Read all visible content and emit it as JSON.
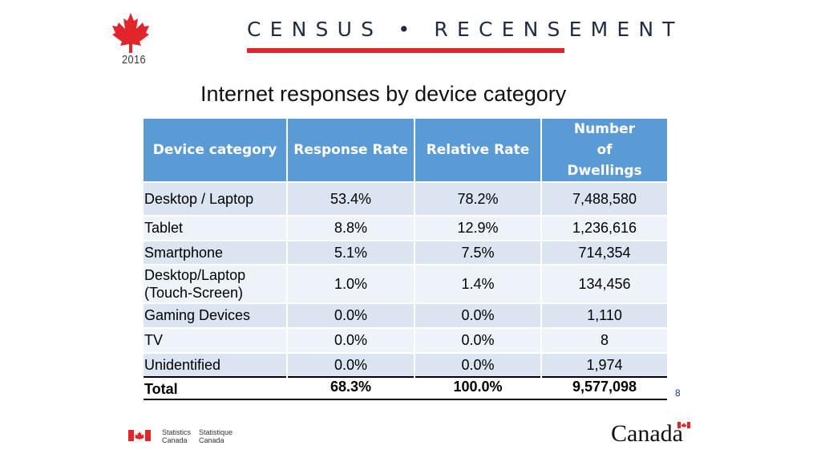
{
  "header": {
    "year": "2016",
    "wordmark": "CENSUS • RECENSEMENT",
    "accent_color": "#e2242b"
  },
  "title": "Internet responses by device category",
  "table": {
    "header_color": "#5b9bd5",
    "columns": [
      "Device category",
      "Response Rate",
      "Relative Rate",
      "Number of Dwellings"
    ],
    "rows": [
      {
        "category": "Desktop / Laptop",
        "response_rate": "53.4%",
        "relative_rate": "78.2%",
        "dwellings": "7,488,580"
      },
      {
        "category": "Tablet",
        "response_rate": "8.8%",
        "relative_rate": "12.9%",
        "dwellings": "1,236,616"
      },
      {
        "category": "Smartphone",
        "response_rate": "5.1%",
        "relative_rate": "7.5%",
        "dwellings": "714,354"
      },
      {
        "category": "Desktop/Laptop (Touch-Screen)",
        "response_rate": "1.0%",
        "relative_rate": "1.4%",
        "dwellings": "134,456"
      },
      {
        "category": "Gaming Devices",
        "response_rate": "0.0%",
        "relative_rate": "0.0%",
        "dwellings": "1,110"
      },
      {
        "category": "TV",
        "response_rate": "0.0%",
        "relative_rate": "0.0%",
        "dwellings": "8"
      },
      {
        "category": "Unidentified",
        "response_rate": "0.0%",
        "relative_rate": "0.0%",
        "dwellings": "1,974"
      }
    ],
    "total": {
      "category": "Total",
      "response_rate": "68.3%",
      "relative_rate": "100.0%",
      "dwellings": "9,577,098"
    }
  },
  "page_number": "8",
  "footer": {
    "statcan_en": [
      "Statistics",
      "Canada"
    ],
    "statcan_fr": [
      "Statistique",
      "Canada"
    ],
    "canada_wordmark": "Canada"
  }
}
